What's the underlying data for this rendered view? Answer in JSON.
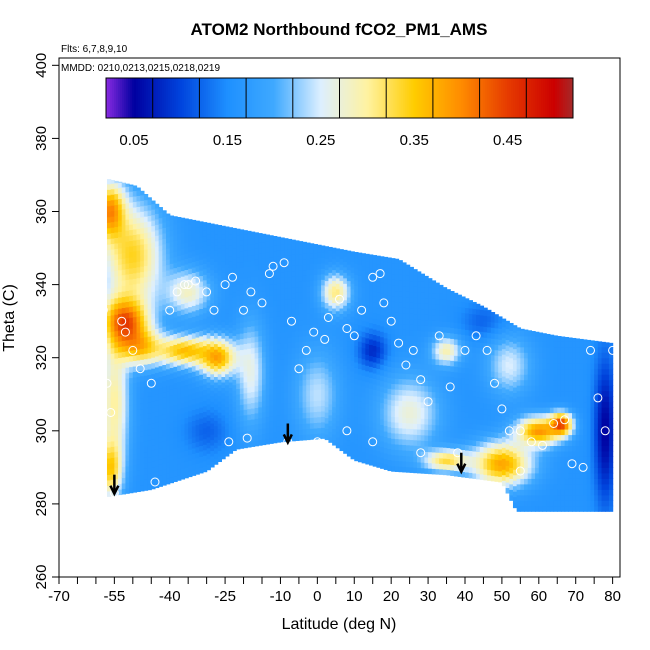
{
  "chart_data": {
    "type": "heatmap",
    "title": "ATOM2 Northbound fCO2_PM1_AMS",
    "flights_note": "Flts: 6,7,8,9,10",
    "dates_note": "MMDD: 0210,0213,0215,0218,0219",
    "xlabel": "Latitude (deg N)",
    "ylabel": "Theta (C)",
    "xlim": [
      -70,
      82
    ],
    "ylim": [
      260,
      402
    ],
    "x_ticks": [
      -70,
      -55,
      -40,
      -25,
      -10,
      0,
      10,
      20,
      30,
      40,
      50,
      60,
      70,
      80
    ],
    "x_tick_labels": [
      "-70",
      "-55",
      "-40",
      "-25",
      "-10",
      "0",
      "10",
      "20",
      "30",
      "40",
      "50",
      "60",
      "70",
      "80"
    ],
    "x_minor_ticks": [
      -65,
      -60,
      -50,
      -45,
      -35,
      -30,
      -20,
      -15,
      -5,
      5,
      15,
      25,
      35,
      45,
      55,
      65,
      75
    ],
    "y_ticks": [
      260,
      280,
      300,
      320,
      340,
      360,
      380,
      400
    ],
    "y_tick_labels": [
      "260",
      "280",
      "300",
      "320",
      "340",
      "360",
      "380",
      "400"
    ],
    "colorbar": {
      "range": [
        0.02,
        0.52
      ],
      "ticks": [
        0.05,
        0.15,
        0.25,
        0.35,
        0.45
      ],
      "tick_labels": [
        "0.05",
        "0.15",
        "0.25",
        "0.35",
        "0.45"
      ],
      "segments": 10,
      "stops": [
        {
          "v": 0.02,
          "c": "#8a2be2"
        },
        {
          "v": 0.05,
          "c": "#0000a0"
        },
        {
          "v": 0.1,
          "c": "#0044dd"
        },
        {
          "v": 0.15,
          "c": "#1e90ff"
        },
        {
          "v": 0.2,
          "c": "#3fa9ff"
        },
        {
          "v": 0.25,
          "c": "#ddefff"
        },
        {
          "v": 0.3,
          "c": "#fff2a0"
        },
        {
          "v": 0.35,
          "c": "#ffcc00"
        },
        {
          "v": 0.4,
          "c": "#ff8c00"
        },
        {
          "v": 0.45,
          "c": "#e63b00"
        },
        {
          "v": 0.5,
          "c": "#cc0000"
        },
        {
          "v": 0.52,
          "c": "#a52a2a"
        }
      ]
    },
    "field": {
      "base_value": 0.16,
      "lat_range": [
        -57,
        80
      ],
      "upper_boundary": [
        [
          -57,
          369
        ],
        [
          -49,
          367
        ],
        [
          -40,
          359
        ],
        [
          -25,
          356
        ],
        [
          -10,
          353
        ],
        [
          0,
          351
        ],
        [
          10,
          349
        ],
        [
          22,
          347
        ],
        [
          35,
          339
        ],
        [
          45,
          334
        ],
        [
          55,
          328
        ],
        [
          65,
          326
        ],
        [
          80,
          324
        ]
      ],
      "lower_boundary": [
        [
          -57,
          282
        ],
        [
          -45,
          284
        ],
        [
          -30,
          289
        ],
        [
          -22,
          295
        ],
        [
          -10,
          297
        ],
        [
          2,
          298
        ],
        [
          10,
          292
        ],
        [
          20,
          289
        ],
        [
          35,
          288
        ],
        [
          50,
          286
        ],
        [
          54,
          278
        ],
        [
          80,
          278
        ]
      ],
      "features": [
        {
          "lat": -50,
          "theta": 348,
          "value": 0.34,
          "lat_width": 8,
          "theta_width": 14
        },
        {
          "lat": -56,
          "theta": 360,
          "value": 0.4,
          "lat_width": 4,
          "theta_width": 8
        },
        {
          "lat": -52,
          "theta": 330,
          "value": 0.44,
          "lat_width": 6,
          "theta_width": 7
        },
        {
          "lat": -48,
          "theta": 323,
          "value": 0.33,
          "lat_width": 6,
          "theta_width": 5
        },
        {
          "lat": -36,
          "theta": 322,
          "value": 0.36,
          "lat_width": 8,
          "theta_width": 4
        },
        {
          "lat": -27,
          "theta": 320,
          "value": 0.37,
          "lat_width": 5,
          "theta_width": 5
        },
        {
          "lat": -55,
          "theta": 308,
          "value": 0.3,
          "lat_width": 4,
          "theta_width": 18
        },
        {
          "lat": -56,
          "theta": 290,
          "value": 0.35,
          "lat_width": 3,
          "theta_width": 8
        },
        {
          "lat": -35,
          "theta": 338,
          "value": 0.28,
          "lat_width": 6,
          "theta_width": 6
        },
        {
          "lat": -18,
          "theta": 316,
          "value": 0.26,
          "lat_width": 4,
          "theta_width": 14
        },
        {
          "lat": 5,
          "theta": 338,
          "value": 0.31,
          "lat_width": 4,
          "theta_width": 5
        },
        {
          "lat": 0,
          "theta": 310,
          "value": 0.24,
          "lat_width": 6,
          "theta_width": 12
        },
        {
          "lat": 25,
          "theta": 305,
          "value": 0.27,
          "lat_width": 8,
          "theta_width": 10
        },
        {
          "lat": 35,
          "theta": 292,
          "value": 0.33,
          "lat_width": 6,
          "theta_width": 3
        },
        {
          "lat": 50,
          "theta": 291,
          "value": 0.38,
          "lat_width": 8,
          "theta_width": 6
        },
        {
          "lat": 60,
          "theta": 300,
          "value": 0.39,
          "lat_width": 6,
          "theta_width": 4
        },
        {
          "lat": 66,
          "theta": 302,
          "value": 0.44,
          "lat_width": 3,
          "theta_width": 3
        },
        {
          "lat": 35,
          "theta": 322,
          "value": 0.29,
          "lat_width": 4,
          "theta_width": 4
        },
        {
          "lat": 52,
          "theta": 318,
          "value": 0.25,
          "lat_width": 6,
          "theta_width": 8
        },
        {
          "lat": 78,
          "theta": 300,
          "value": 0.05,
          "lat_width": 3,
          "theta_width": 20
        },
        {
          "lat": 15,
          "theta": 322,
          "value": 0.08,
          "lat_width": 4,
          "theta_width": 5
        },
        {
          "lat": 45,
          "theta": 330,
          "value": 0.12,
          "lat_width": 6,
          "theta_width": 5
        },
        {
          "lat": -30,
          "theta": 300,
          "value": 0.12,
          "lat_width": 6,
          "theta_width": 6
        }
      ]
    },
    "sample_points": [
      [
        -69,
        337
      ],
      [
        -68,
        310
      ],
      [
        -67,
        297
      ],
      [
        -66,
        286
      ],
      [
        -58,
        333
      ],
      [
        -57,
        313
      ],
      [
        -56,
        305
      ],
      [
        -55,
        283
      ],
      [
        -53,
        330
      ],
      [
        -52,
        327
      ],
      [
        -50,
        322
      ],
      [
        -48,
        317
      ],
      [
        -45,
        313
      ],
      [
        -44,
        286
      ],
      [
        -40,
        333
      ],
      [
        -38,
        338
      ],
      [
        -36,
        340
      ],
      [
        -35,
        340
      ],
      [
        -33,
        341
      ],
      [
        -30,
        338
      ],
      [
        -28,
        333
      ],
      [
        -25,
        340
      ],
      [
        -23,
        342
      ],
      [
        -20,
        333
      ],
      [
        -18,
        338
      ],
      [
        -15,
        335
      ],
      [
        -13,
        343
      ],
      [
        -12,
        345
      ],
      [
        -9,
        346
      ],
      [
        -7,
        330
      ],
      [
        -5,
        317
      ],
      [
        -3,
        322
      ],
      [
        -1,
        327
      ],
      [
        2,
        325
      ],
      [
        3,
        331
      ],
      [
        6,
        336
      ],
      [
        8,
        328
      ],
      [
        10,
        326
      ],
      [
        12,
        333
      ],
      [
        15,
        342
      ],
      [
        17,
        343
      ],
      [
        18,
        335
      ],
      [
        20,
        330
      ],
      [
        22,
        324
      ],
      [
        24,
        318
      ],
      [
        26,
        322
      ],
      [
        28,
        314
      ],
      [
        30,
        308
      ],
      [
        33,
        326
      ],
      [
        36,
        312
      ],
      [
        38,
        294
      ],
      [
        40,
        322
      ],
      [
        43,
        326
      ],
      [
        46,
        322
      ],
      [
        48,
        313
      ],
      [
        50,
        306
      ],
      [
        52,
        300
      ],
      [
        55,
        300
      ],
      [
        58,
        297
      ],
      [
        61,
        296
      ],
      [
        64,
        302
      ],
      [
        67,
        303
      ],
      [
        69,
        291
      ],
      [
        72,
        290
      ],
      [
        74,
        322
      ],
      [
        76,
        309
      ],
      [
        78,
        300
      ],
      [
        80,
        322
      ],
      [
        -24,
        297
      ],
      [
        -19,
        298
      ],
      [
        -8,
        297
      ],
      [
        0,
        297
      ],
      [
        8,
        300
      ],
      [
        15,
        297
      ],
      [
        28,
        294
      ],
      [
        55,
        289
      ]
    ],
    "arrows": [
      {
        "lat": -55,
        "theta": 288
      },
      {
        "lat": -8,
        "theta": 302
      },
      {
        "lat": 39,
        "theta": 294
      }
    ]
  }
}
